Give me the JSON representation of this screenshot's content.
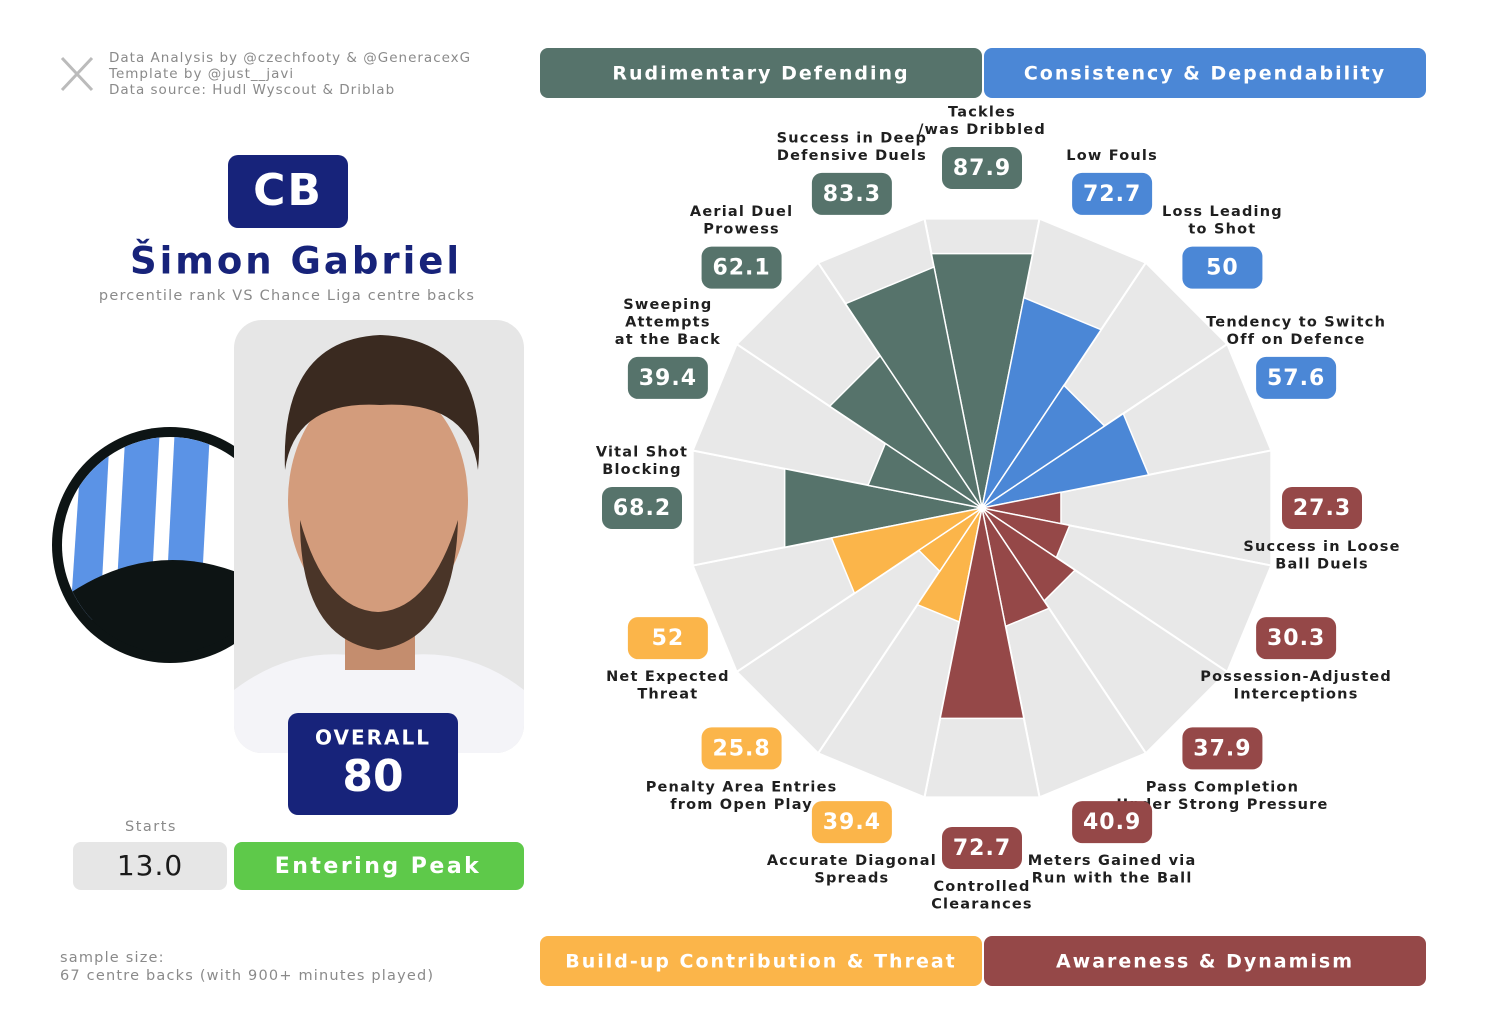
{
  "header": {
    "credits": [
      "Data Analysis by @czechfooty & @GeneracexG",
      "Template by @just__javi",
      "Data source: Hudl Wyscout & Driblab"
    ]
  },
  "player": {
    "position": "CB",
    "name": "Šimon Gabriel",
    "subtitle": "percentile rank VS Chance Liga centre backs",
    "overall_label": "OVERALL",
    "overall": 80,
    "starts_label": "Starts",
    "starts": "13.0",
    "status": "Entering Peak"
  },
  "footer": {
    "sample_size": [
      "sample size:",
      "67 centre backs (with 900+ minutes played)"
    ]
  },
  "chart_data": {
    "type": "pizza",
    "rlim": [
      0,
      100
    ],
    "categories": [
      "Tackles\n/was Dribbled",
      "Low Fouls",
      "Loss Leading\nto Shot",
      "Tendency to Switch\nOff on Defence",
      "Success in Loose\nBall Duels",
      "Possession-Adjusted\nInterceptions",
      "Pass Completion\nUnder Strong Pressure",
      "Meters Gained via\nRun with the Ball",
      "Controlled\nClearances",
      "Accurate Diagonal\nSpreads",
      "Penalty Area Entries\nfrom Open Play",
      "Net Expected\nThreat",
      "Vital Shot\nBlocking",
      "Sweeping\nAttempts\nat the Back",
      "Aerial Duel\nProwess",
      "Success in Deep\nDefensive Duels"
    ],
    "series": [
      {
        "name": "Rudimentary Defending",
        "color": "#56736b",
        "values": [
          87.9,
          null,
          null,
          null,
          null,
          null,
          null,
          null,
          null,
          null,
          null,
          null,
          68.2,
          39.4,
          62.1,
          83.3
        ]
      },
      {
        "name": "Consistency & Dependability",
        "color": "#4b87d6",
        "values": [
          null,
          72.7,
          50,
          57.6,
          null,
          null,
          null,
          null,
          null,
          null,
          null,
          null,
          null,
          null,
          null,
          null
        ]
      },
      {
        "name": "Build-up Contribution & Threat",
        "color": "#fbb54a",
        "values": [
          null,
          null,
          null,
          null,
          null,
          null,
          null,
          null,
          null,
          39.4,
          25.8,
          52,
          null,
          null,
          null,
          null
        ]
      },
      {
        "name": "Awareness & Dynamism",
        "color": "#954848",
        "values": [
          null,
          null,
          null,
          null,
          27.3,
          30.3,
          37.9,
          40.9,
          72.7,
          null,
          null,
          null,
          null,
          null,
          null,
          null
        ]
      }
    ]
  }
}
